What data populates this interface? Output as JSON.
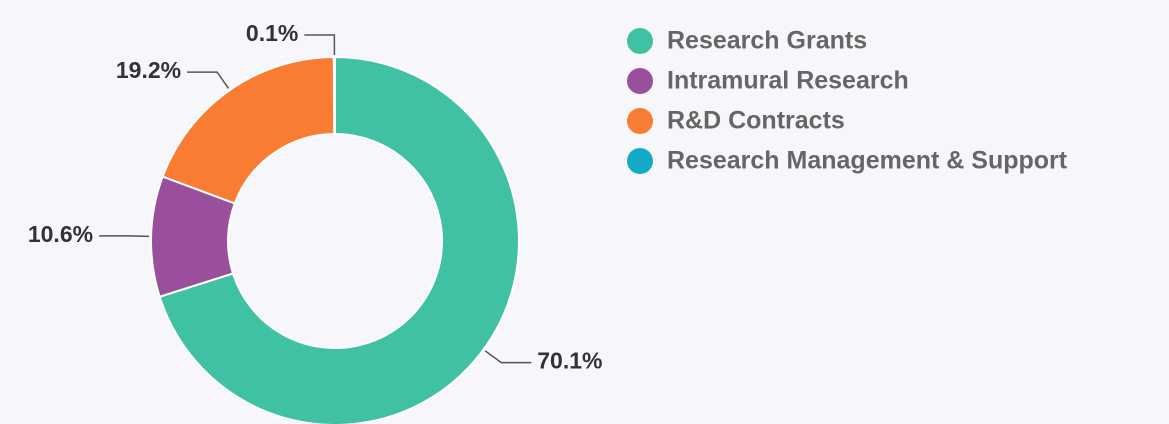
{
  "chart_data": {
    "type": "donut",
    "categories": [
      "Research Grants",
      "Intramural Research",
      "R&D Contracts",
      "Research Management & Support"
    ],
    "values": [
      70.1,
      10.6,
      19.2,
      0.1
    ],
    "value_labels": [
      "70.1%",
      "10.6%",
      "19.2%",
      "0.1%"
    ],
    "colors": [
      "#41c1a3",
      "#9a4f9d",
      "#fa7b32",
      "#14a9c8"
    ],
    "legend": "right"
  }
}
